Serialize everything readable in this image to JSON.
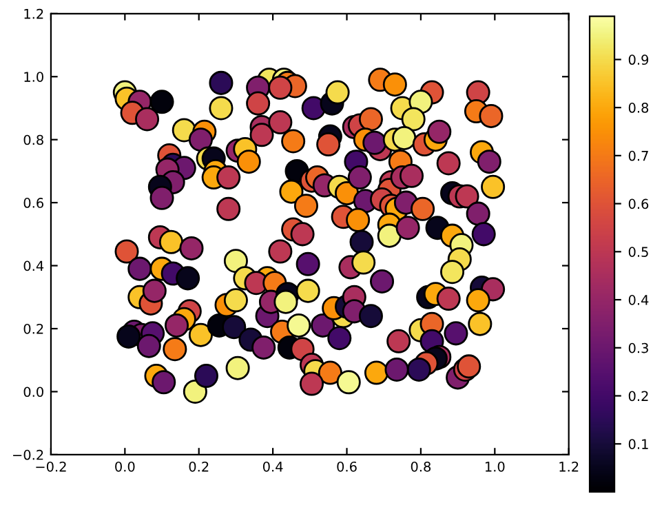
{
  "chart_data": {
    "type": "scatter",
    "marker": "circle",
    "grid": false,
    "xlim": [
      -0.2,
      1.2
    ],
    "ylim": [
      -0.2,
      1.2
    ],
    "xticks": [
      {
        "value": -0.2,
        "label": "−0.2"
      },
      {
        "value": 0,
        "label": "0.0"
      },
      0.2,
      0.4,
      0.6,
      0.8,
      {
        "value": 1,
        "label": "1.0"
      },
      1.2
    ],
    "yticks": [
      {
        "value": -0.2,
        "label": "−0.2"
      },
      {
        "value": 0,
        "label": "0.0"
      },
      0.2,
      0.4,
      0.6,
      0.8,
      {
        "value": 1,
        "label": "1.0"
      },
      1.2
    ],
    "clim": [
      0.0,
      0.99
    ],
    "cticks": [
      0.1,
      0.2,
      0.3,
      0.4,
      0.5,
      0.6,
      0.7,
      0.8,
      0.9
    ],
    "series": [
      {
        "x": [
          0.0,
          0.005,
          0.04,
          0.02,
          0.06,
          0.1,
          0.26,
          0.26,
          0.39,
          0.36,
          0.43,
          0.44,
          0.46,
          0.42,
          0.36,
          0.51,
          0.56,
          0.575,
          0.69,
          0.73,
          0.83,
          0.955,
          0.75,
          0.8,
          0.78,
          0.95,
          0.99,
          0.16,
          0.215,
          0.205,
          0.37,
          0.37,
          0.42,
          0.455,
          0.555,
          0.55,
          0.62,
          0.635,
          0.665,
          0.65,
          0.69,
          0.675,
          0.73,
          0.755,
          0.81,
          0.84,
          0.85,
          0.225,
          0.24,
          0.245,
          0.24,
          0.28,
          0.305,
          0.325,
          0.335,
          0.12,
          0.13,
          0.16,
          0.115,
          0.13,
          0.095,
          0.1,
          0.465,
          0.505,
          0.52,
          0.54,
          0.58,
          0.6,
          0.625,
          0.635,
          0.65,
          0.745,
          0.72,
          0.715,
          0.75,
          0.775,
          0.875,
          0.965,
          0.985,
          0.995,
          0.28,
          0.45,
          0.49,
          0.59,
          0.63,
          0.695,
          0.72,
          0.735,
          0.76,
          0.805,
          0.715,
          0.715,
          0.765,
          0.845,
          0.885,
          0.905,
          0.925,
          0.955,
          0.97,
          0.885,
          0.91,
          0.905,
          0.885,
          0.455,
          0.48,
          0.64,
          0.005,
          0.095,
          0.125,
          0.18,
          0.04,
          0.1,
          0.13,
          0.17,
          0.3,
          0.325,
          0.385,
          0.355,
          0.405,
          0.42,
          0.495,
          0.61,
          0.645,
          0.695,
          0.04,
          0.07,
          0.08,
          0.175,
          0.16,
          0.14,
          0.025,
          0.045,
          0.075,
          0.065,
          0.01,
          0.205,
          0.255,
          0.295,
          0.275,
          0.3,
          0.34,
          0.385,
          0.395,
          0.44,
          0.435,
          0.425,
          0.375,
          0.445,
          0.48,
          0.47,
          0.495,
          0.535,
          0.59,
          0.565,
          0.58,
          0.6,
          0.62,
          0.62,
          0.665,
          0.74,
          0.8,
          0.82,
          0.84,
          0.875,
          0.83,
          0.83,
          0.85,
          0.84,
          0.815,
          0.795,
          0.895,
          0.965,
          0.995,
          0.955,
          0.96,
          0.085,
          0.105,
          0.135,
          0.19,
          0.22,
          0.305,
          0.505,
          0.515,
          0.555,
          0.505,
          0.605,
          0.68,
          0.735,
          0.9,
          0.92,
          0.93
        ],
        "values": [
          0.95,
          0.93,
          0.92,
          0.885,
          0.865,
          0.92,
          0.98,
          0.9,
          0.99,
          0.965,
          0.99,
          0.98,
          0.97,
          0.965,
          0.915,
          0.9,
          0.915,
          0.95,
          0.99,
          0.975,
          0.95,
          0.95,
          0.9,
          0.92,
          0.865,
          0.89,
          0.875,
          0.83,
          0.825,
          0.8,
          0.84,
          0.815,
          0.855,
          0.795,
          0.81,
          0.785,
          0.84,
          0.845,
          0.865,
          0.8,
          0.77,
          0.79,
          0.8,
          0.805,
          0.785,
          0.8,
          0.825,
          0.74,
          0.74,
          0.7,
          0.68,
          0.68,
          0.765,
          0.77,
          0.73,
          0.75,
          0.72,
          0.71,
          0.705,
          0.665,
          0.65,
          0.615,
          0.7,
          0.67,
          0.68,
          0.655,
          0.65,
          0.63,
          0.73,
          0.68,
          0.605,
          0.73,
          0.665,
          0.64,
          0.68,
          0.685,
          0.725,
          0.76,
          0.73,
          0.65,
          0.58,
          0.635,
          0.59,
          0.555,
          0.545,
          0.61,
          0.59,
          0.58,
          0.6,
          0.58,
          0.53,
          0.495,
          0.52,
          0.52,
          0.63,
          0.62,
          0.62,
          0.565,
          0.5,
          0.495,
          0.465,
          0.42,
          0.38,
          0.515,
          0.5,
          0.475,
          0.445,
          0.49,
          0.475,
          0.455,
          0.39,
          0.39,
          0.375,
          0.36,
          0.415,
          0.36,
          0.36,
          0.345,
          0.345,
          0.445,
          0.405,
          0.395,
          0.41,
          0.35,
          0.3,
          0.28,
          0.32,
          0.255,
          0.23,
          0.21,
          0.19,
          0.18,
          0.185,
          0.145,
          0.175,
          0.18,
          0.21,
          0.205,
          0.275,
          0.29,
          0.165,
          0.24,
          0.285,
          0.31,
          0.285,
          0.19,
          0.14,
          0.14,
          0.135,
          0.21,
          0.32,
          0.21,
          0.24,
          0.265,
          0.17,
          0.27,
          0.3,
          0.255,
          0.24,
          0.16,
          0.195,
          0.3,
          0.31,
          0.295,
          0.215,
          0.16,
          0.11,
          0.105,
          0.09,
          0.07,
          0.185,
          0.33,
          0.325,
          0.29,
          0.215,
          0.05,
          0.03,
          0.135,
          0.0,
          0.05,
          0.075,
          0.085,
          0.065,
          0.06,
          0.025,
          0.03,
          0.06,
          0.07,
          0.045,
          0.07,
          0.08
        ],
        "cvalues": [
          0.95,
          0.85,
          0.4,
          0.6,
          0.45,
          0.02,
          0.15,
          0.9,
          0.92,
          0.35,
          0.95,
          0.7,
          0.65,
          0.55,
          0.55,
          0.2,
          0.05,
          0.9,
          0.7,
          0.75,
          0.6,
          0.55,
          0.9,
          0.95,
          0.92,
          0.7,
          0.65,
          0.9,
          0.75,
          0.35,
          0.45,
          0.5,
          0.5,
          0.7,
          0.05,
          0.6,
          0.45,
          0.55,
          0.65,
          0.75,
          0.5,
          0.3,
          0.9,
          0.95,
          0.6,
          0.8,
          0.4,
          0.9,
          0.05,
          0.8,
          0.8,
          0.5,
          0.4,
          0.85,
          0.75,
          0.6,
          0.15,
          0.3,
          0.4,
          0.35,
          0.05,
          0.35,
          0.02,
          0.6,
          0.65,
          0.4,
          0.9,
          0.75,
          0.2,
          0.35,
          0.3,
          0.7,
          0.5,
          0.6,
          0.45,
          0.45,
          0.5,
          0.8,
          0.35,
          0.85,
          0.5,
          0.8,
          0.7,
          0.6,
          0.75,
          0.55,
          0.6,
          0.8,
          0.35,
          0.65,
          0.8,
          0.95,
          0.4,
          0.05,
          0.05,
          0.5,
          0.5,
          0.35,
          0.2,
          0.8,
          0.95,
          0.9,
          0.92,
          0.6,
          0.5,
          0.1,
          0.6,
          0.5,
          0.85,
          0.4,
          0.3,
          0.8,
          0.2,
          0.05,
          0.95,
          0.9,
          0.8,
          0.5,
          0.7,
          0.5,
          0.25,
          0.45,
          0.9,
          0.3,
          0.85,
          0.6,
          0.4,
          0.55,
          0.8,
          0.4,
          0.3,
          0.35,
          0.25,
          0.3,
          0.05,
          0.85,
          0.02,
          0.1,
          0.75,
          0.9,
          0.1,
          0.3,
          0.4,
          0.05,
          0.95,
          0.7,
          0.35,
          0.02,
          0.55,
          0.97,
          0.9,
          0.3,
          0.9,
          0.75,
          0.2,
          0.1,
          0.45,
          0.35,
          0.1,
          0.5,
          0.9,
          0.05,
          0.8,
          0.5,
          0.65,
          0.2,
          0.45,
          0.05,
          0.6,
          0.15,
          0.25,
          0.1,
          0.45,
          0.8,
          0.85,
          0.8,
          0.3,
          0.7,
          0.95,
          0.15,
          0.95,
          0.5,
          0.9,
          0.7,
          0.5,
          0.97,
          0.8,
          0.3,
          0.35,
          0.55,
          0.6
        ]
      }
    ]
  }
}
